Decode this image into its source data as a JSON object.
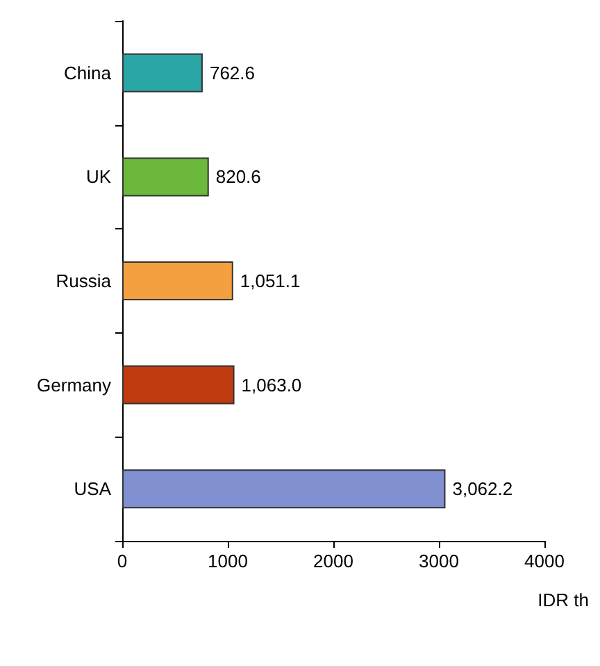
{
  "chart_data": {
    "type": "bar",
    "orientation": "horizontal",
    "categories": [
      "China",
      "UK",
      "Russia",
      "Germany",
      "USA"
    ],
    "values": [
      762.6,
      820.6,
      1051.1,
      1063.0,
      3062.2
    ],
    "colors": [
      "#2aa6a6",
      "#6cb83a",
      "#f5a040",
      "#c03a10",
      "#8090d0"
    ],
    "value_labels": [
      "762.6",
      "820.6",
      "1,051.1",
      "1,063.0",
      "3,062.2"
    ],
    "xlim": [
      0,
      4000
    ],
    "xticks": [
      0,
      1000,
      2000,
      3000,
      4000
    ],
    "xlabel": "IDR th",
    "grid": false
  }
}
